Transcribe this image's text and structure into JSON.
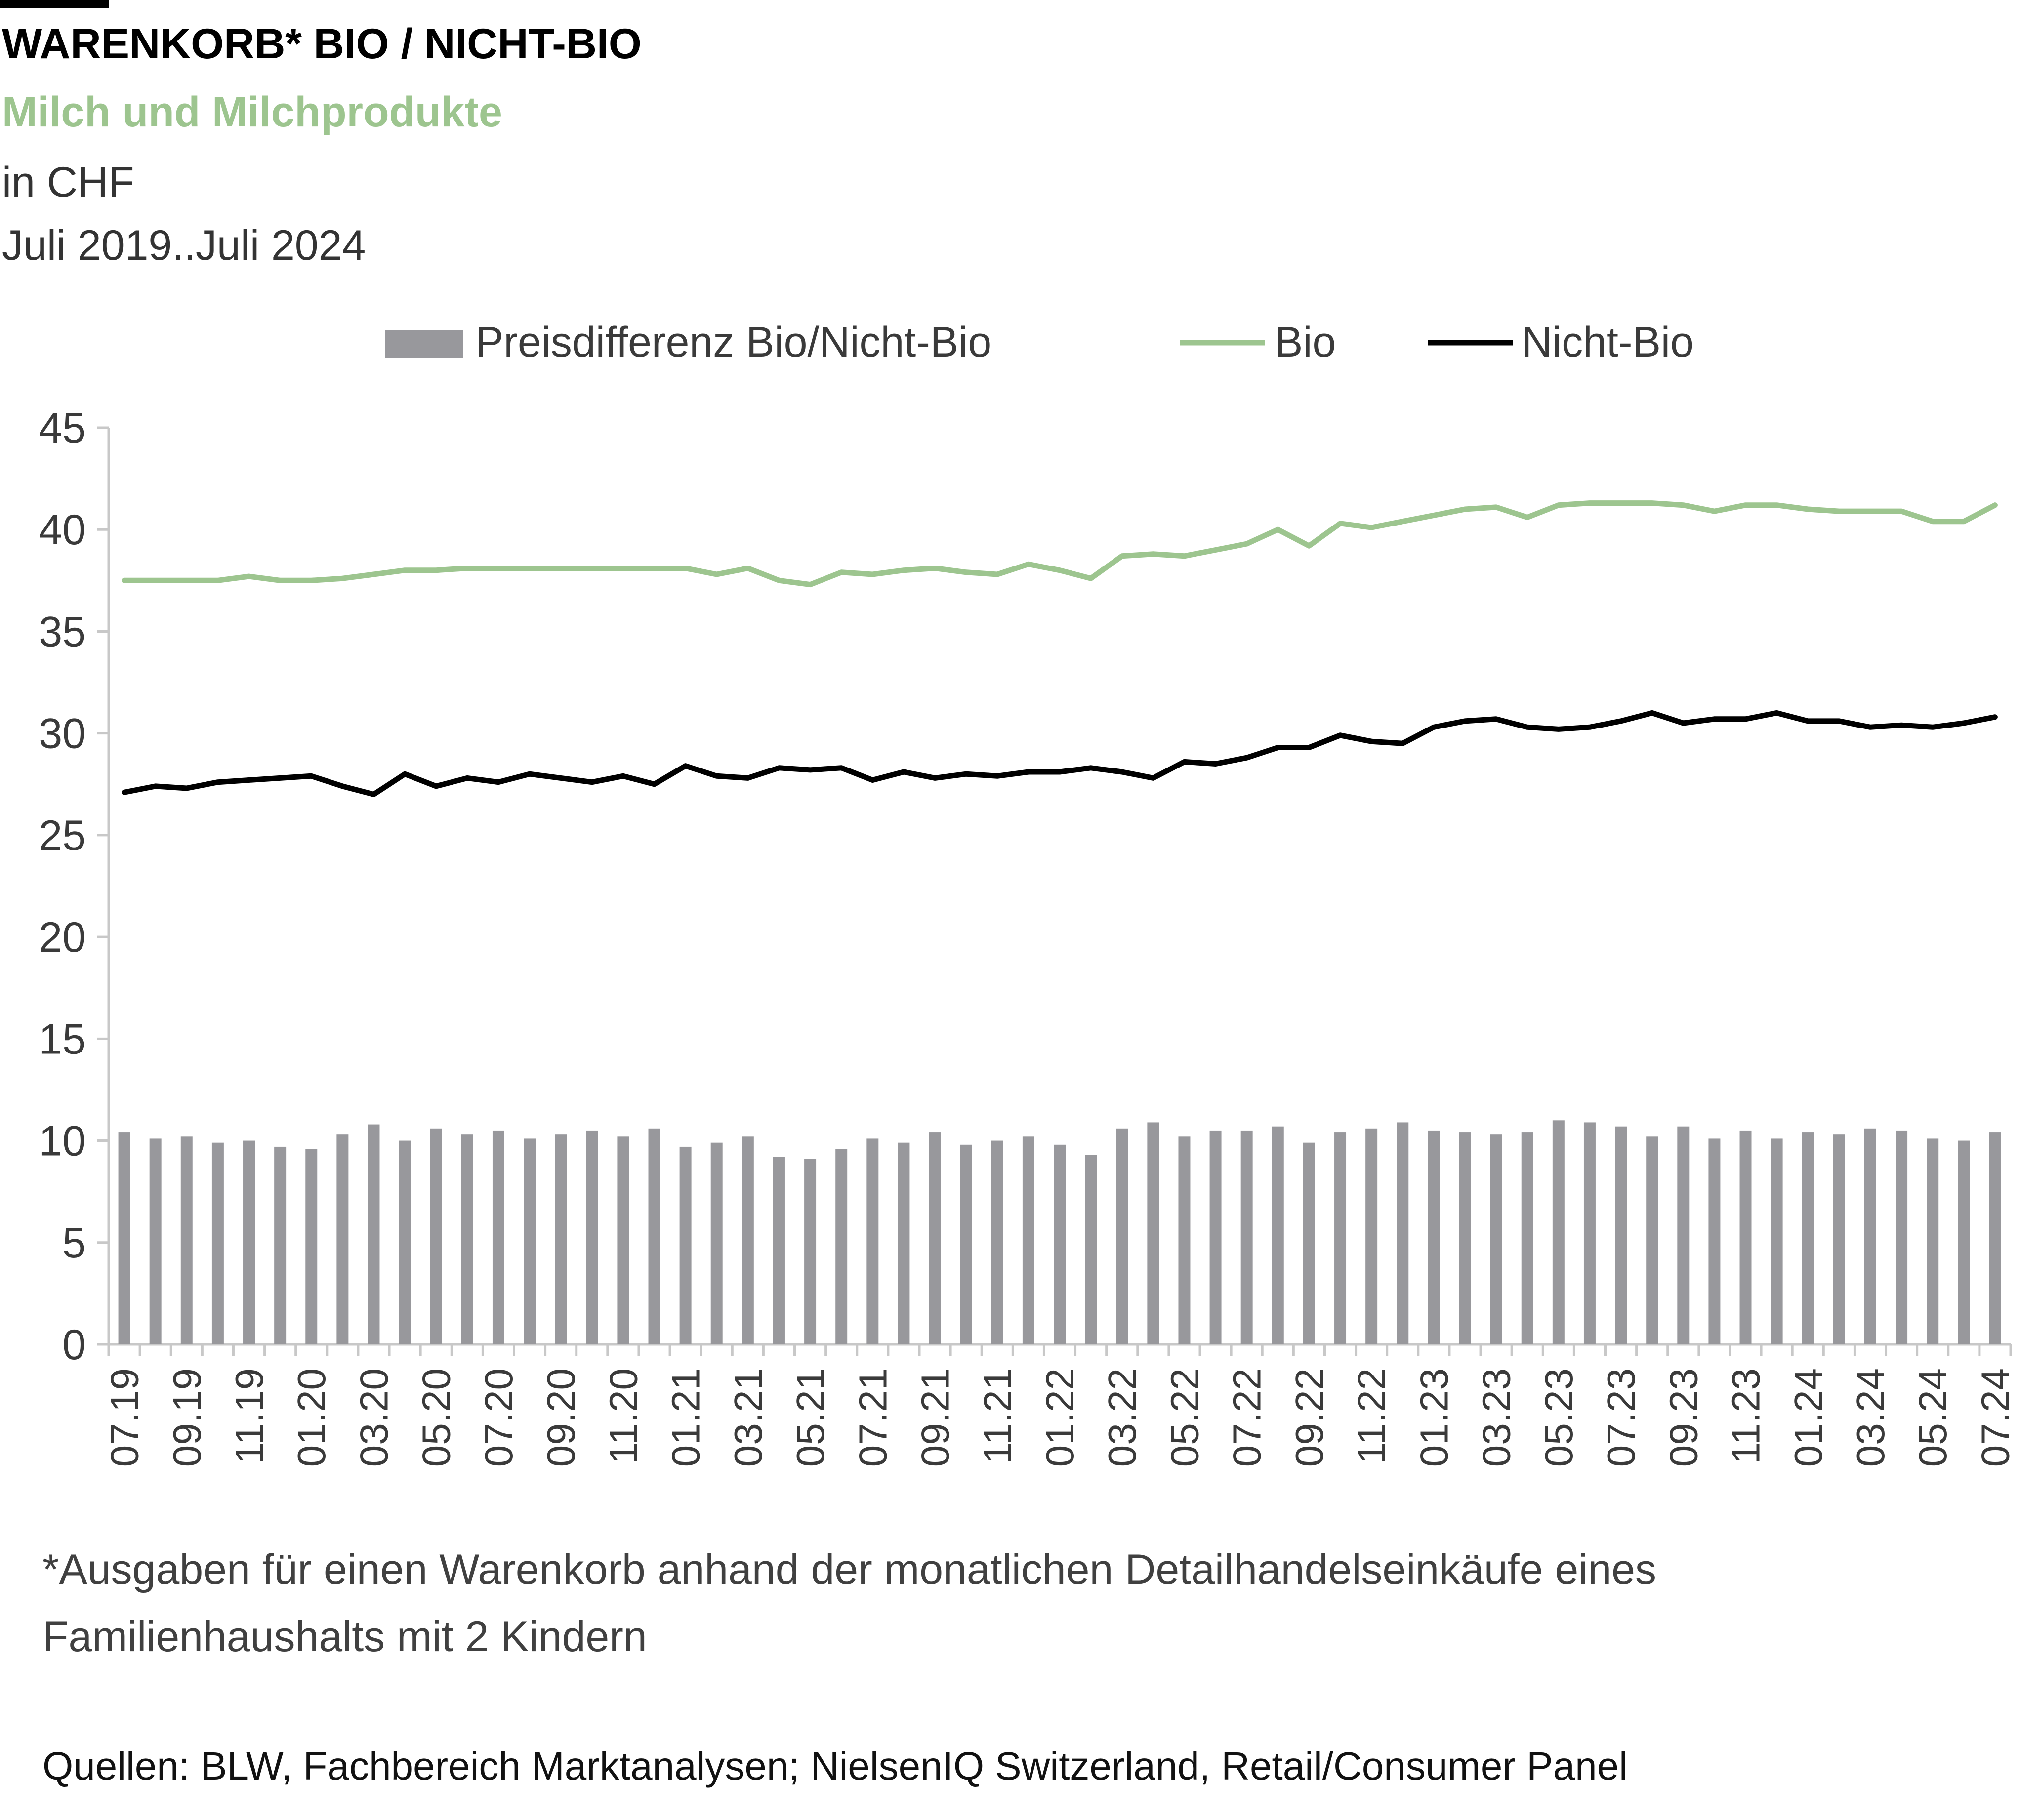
{
  "header": {
    "title": "WARENKORB* BIO / NICHT-BIO",
    "subtitle": "Milch und Milchprodukte",
    "unit": "in CHF",
    "period": "Juli 2019..Juli 2024"
  },
  "footer": {
    "footnote": "*Ausgaben für einen Warenkorb anhand der monatlichen Detailhandelseinkäufe eines Familienhaushalts mit 2 Kindern",
    "source": "Quellen: BLW, Fachbereich Marktanalysen; NielsenIQ Switzerland, Retail/Consumer Panel"
  },
  "colors": {
    "bar": "#98989c",
    "bio": "#9dc58f",
    "nicht_bio": "#000000",
    "axis": "#c8c8c8"
  },
  "chart_data": {
    "type": "bar",
    "combo": "bar + line",
    "ylim": [
      0,
      45
    ],
    "yticks": [
      0,
      5,
      10,
      15,
      20,
      25,
      30,
      35,
      40,
      45
    ],
    "grid": false,
    "legend_position": "top",
    "categories": [
      "07.19",
      "08.19",
      "09.19",
      "10.19",
      "11.19",
      "12.19",
      "01.20",
      "02.20",
      "03.20",
      "04.20",
      "05.20",
      "06.20",
      "07.20",
      "08.20",
      "09.20",
      "10.20",
      "11.20",
      "12.20",
      "01.21",
      "02.21",
      "03.21",
      "04.21",
      "05.21",
      "06.21",
      "07.21",
      "08.21",
      "09.21",
      "10.21",
      "11.21",
      "12.21",
      "01.22",
      "02.22",
      "03.22",
      "04.22",
      "05.22",
      "06.22",
      "07.22",
      "08.22",
      "09.22",
      "10.22",
      "11.22",
      "12.22",
      "01.23",
      "02.23",
      "03.23",
      "04.23",
      "05.23",
      "06.23",
      "07.23",
      "08.23",
      "09.23",
      "10.23",
      "11.23",
      "12.23",
      "01.24",
      "02.24",
      "03.24",
      "04.24",
      "05.24",
      "06.24",
      "07.24"
    ],
    "tick_labels": [
      "07.19",
      "09.19",
      "11.19",
      "01.20",
      "03.20",
      "05.20",
      "07.20",
      "09.20",
      "11.20",
      "01.21",
      "03.21",
      "05.21",
      "07.21",
      "09.21",
      "11.21",
      "01.22",
      "03.22",
      "05.22",
      "07.22",
      "09.22",
      "11.22",
      "01.23",
      "03.23",
      "05.23",
      "07.23",
      "09.23",
      "11.23",
      "01.24",
      "03.24",
      "05.24",
      "07.24"
    ],
    "series": [
      {
        "name": "Preisdifferenz Bio/Nicht-Bio",
        "type": "bar",
        "values": [
          10.4,
          10.1,
          10.2,
          9.9,
          10.0,
          9.7,
          9.6,
          10.3,
          10.8,
          10.0,
          10.6,
          10.3,
          10.5,
          10.1,
          10.3,
          10.5,
          10.2,
          10.6,
          9.7,
          9.9,
          10.2,
          9.2,
          9.1,
          9.6,
          10.1,
          9.9,
          10.4,
          9.8,
          10.0,
          10.2,
          9.8,
          9.3,
          10.6,
          10.9,
          10.2,
          10.5,
          10.5,
          10.7,
          9.9,
          10.4,
          10.6,
          10.9,
          10.5,
          10.4,
          10.3,
          10.4,
          11.0,
          10.9,
          10.7,
          10.2,
          10.7,
          10.1,
          10.5,
          10.1,
          10.4,
          10.3,
          10.6,
          10.5,
          10.1,
          10.0,
          10.4
        ]
      },
      {
        "name": "Bio",
        "type": "line",
        "values": [
          37.5,
          37.5,
          37.5,
          37.5,
          37.7,
          37.5,
          37.5,
          37.6,
          37.8,
          38.0,
          38.0,
          38.1,
          38.1,
          38.1,
          38.1,
          38.1,
          38.1,
          38.1,
          38.1,
          37.8,
          38.1,
          37.5,
          37.3,
          37.9,
          37.8,
          38.0,
          38.1,
          37.9,
          37.8,
          38.3,
          38.0,
          37.6,
          38.7,
          38.8,
          38.7,
          39.0,
          39.3,
          40.0,
          39.2,
          40.3,
          40.1,
          40.4,
          40.7,
          41.0,
          41.1,
          40.6,
          41.2,
          41.3,
          41.3,
          41.3,
          41.2,
          40.9,
          41.2,
          41.2,
          41.0,
          40.9,
          40.9,
          40.9,
          40.4,
          40.4,
          41.2
        ]
      },
      {
        "name": "Nicht-Bio",
        "type": "line",
        "values": [
          27.1,
          27.4,
          27.3,
          27.6,
          27.7,
          27.8,
          27.9,
          27.4,
          27.0,
          28.0,
          27.4,
          27.8,
          27.6,
          28.0,
          27.8,
          27.6,
          27.9,
          27.5,
          28.4,
          27.9,
          27.8,
          28.3,
          28.2,
          28.3,
          27.7,
          28.1,
          27.8,
          28.0,
          27.9,
          28.1,
          28.1,
          28.3,
          28.1,
          27.8,
          28.6,
          28.5,
          28.8,
          29.3,
          29.3,
          29.9,
          29.6,
          29.5,
          30.3,
          30.6,
          30.7,
          30.3,
          30.2,
          30.3,
          30.6,
          31.0,
          30.5,
          30.7,
          30.7,
          31.0,
          30.6,
          30.6,
          30.3,
          30.4,
          30.3,
          30.5,
          30.8
        ]
      }
    ]
  }
}
